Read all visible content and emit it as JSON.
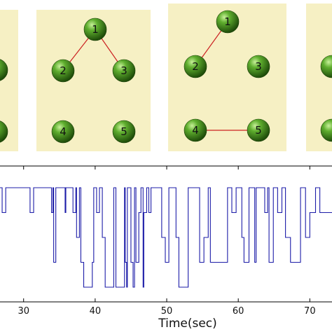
{
  "colors": {
    "panel_bg": "#f6f0c4",
    "node_fill": "#3f8a1c",
    "edge": "#cc2222",
    "trace": "#1c1ca8",
    "axis": "#000000"
  },
  "panels": [
    {
      "nodes": [
        {
          "id": "2",
          "label": ""
        },
        {
          "id": "4",
          "label": ""
        }
      ],
      "edges": []
    },
    {
      "nodes": [
        {
          "id": "1",
          "label": "1"
        },
        {
          "id": "2",
          "label": "2"
        },
        {
          "id": "3",
          "label": "3"
        },
        {
          "id": "4",
          "label": "4"
        },
        {
          "id": "5",
          "label": "5"
        }
      ],
      "edges": [
        [
          "1",
          "2"
        ],
        [
          "1",
          "3"
        ]
      ]
    },
    {
      "nodes": [
        {
          "id": "1",
          "label": "1"
        },
        {
          "id": "2",
          "label": "2"
        },
        {
          "id": "3",
          "label": "3"
        },
        {
          "id": "4",
          "label": "4"
        },
        {
          "id": "5",
          "label": "5"
        }
      ],
      "edges": [
        [
          "1",
          "2"
        ],
        [
          "4",
          "5"
        ]
      ]
    },
    {
      "nodes": [
        {
          "id": "1",
          "label": ""
        },
        {
          "id": "2",
          "label": ""
        }
      ],
      "edges": []
    }
  ],
  "timeline": {
    "xlabel": "Time(sec)",
    "xlim": [
      26.7,
      73.1
    ],
    "xticks": [
      {
        "value": 30,
        "label": "30"
      },
      {
        "value": 40,
        "label": "40"
      },
      {
        "value": 50,
        "label": "50"
      },
      {
        "value": 60,
        "label": "60"
      },
      {
        "value": 70,
        "label": "70"
      }
    ],
    "levels": [
      1,
      2,
      3,
      4,
      5
    ],
    "steps": [
      [
        26.7,
        1
      ],
      [
        27.0,
        1
      ],
      [
        27.0,
        2
      ],
      [
        27.5,
        2
      ],
      [
        27.5,
        1
      ],
      [
        30.9,
        1
      ],
      [
        30.9,
        2
      ],
      [
        31.4,
        2
      ],
      [
        31.4,
        1
      ],
      [
        33.9,
        1
      ],
      [
        33.9,
        2
      ],
      [
        34.1,
        2
      ],
      [
        34.1,
        1
      ],
      [
        34.2,
        1
      ],
      [
        34.2,
        4
      ],
      [
        34.5,
        4
      ],
      [
        34.5,
        1
      ],
      [
        35.8,
        1
      ],
      [
        35.8,
        2
      ],
      [
        35.9,
        2
      ],
      [
        35.9,
        1
      ],
      [
        36.9,
        1
      ],
      [
        36.9,
        2
      ],
      [
        37.3,
        2
      ],
      [
        37.3,
        1
      ],
      [
        37.4,
        1
      ],
      [
        37.4,
        3
      ],
      [
        37.8,
        3
      ],
      [
        37.8,
        1
      ],
      [
        38.0,
        1
      ],
      [
        38.0,
        4
      ],
      [
        38.4,
        4
      ],
      [
        38.4,
        5
      ],
      [
        39.6,
        5
      ],
      [
        39.6,
        4
      ],
      [
        39.8,
        4
      ],
      [
        39.8,
        1
      ],
      [
        40.2,
        1
      ],
      [
        40.2,
        2
      ],
      [
        40.6,
        2
      ],
      [
        40.6,
        1
      ],
      [
        41.0,
        1
      ],
      [
        41.0,
        3
      ],
      [
        41.4,
        3
      ],
      [
        41.4,
        5
      ],
      [
        42.6,
        5
      ],
      [
        42.6,
        1
      ],
      [
        42.9,
        1
      ],
      [
        42.9,
        5
      ],
      [
        44.1,
        5
      ],
      [
        44.1,
        1
      ],
      [
        44.2,
        1
      ],
      [
        44.2,
        4
      ],
      [
        44.4,
        4
      ],
      [
        44.4,
        5
      ],
      [
        44.5,
        5
      ],
      [
        44.5,
        1
      ],
      [
        45.0,
        1
      ],
      [
        45.0,
        4
      ],
      [
        45.3,
        4
      ],
      [
        45.3,
        5
      ],
      [
        45.5,
        5
      ],
      [
        45.5,
        1
      ],
      [
        45.7,
        1
      ],
      [
        45.7,
        4
      ],
      [
        46.1,
        4
      ],
      [
        46.1,
        2
      ],
      [
        46.4,
        2
      ],
      [
        46.4,
        1
      ],
      [
        46.7,
        1
      ],
      [
        46.7,
        5
      ],
      [
        46.8,
        5
      ],
      [
        46.8,
        2
      ],
      [
        47.2,
        2
      ],
      [
        47.2,
        1
      ],
      [
        47.5,
        1
      ],
      [
        47.5,
        2
      ],
      [
        47.8,
        2
      ],
      [
        47.8,
        1
      ],
      [
        49.3,
        1
      ],
      [
        49.3,
        3
      ],
      [
        49.8,
        3
      ],
      [
        49.8,
        4
      ],
      [
        50.3,
        4
      ],
      [
        50.3,
        1
      ],
      [
        51.3,
        1
      ],
      [
        51.3,
        3
      ],
      [
        51.7,
        3
      ],
      [
        51.7,
        5
      ],
      [
        53.0,
        5
      ],
      [
        53.0,
        1
      ],
      [
        54.6,
        1
      ],
      [
        54.6,
        4
      ],
      [
        55.2,
        4
      ],
      [
        55.2,
        3
      ],
      [
        55.8,
        3
      ],
      [
        55.8,
        1
      ],
      [
        56.1,
        1
      ],
      [
        56.1,
        4
      ],
      [
        58.5,
        4
      ],
      [
        58.5,
        1
      ],
      [
        59.1,
        1
      ],
      [
        59.1,
        2
      ],
      [
        59.7,
        2
      ],
      [
        59.7,
        1
      ],
      [
        60.5,
        1
      ],
      [
        60.5,
        3
      ],
      [
        60.8,
        3
      ],
      [
        60.8,
        4
      ],
      [
        61.5,
        4
      ],
      [
        61.5,
        1
      ],
      [
        62.3,
        1
      ],
      [
        62.3,
        4
      ],
      [
        62.5,
        4
      ],
      [
        62.5,
        1
      ],
      [
        63.7,
        1
      ],
      [
        63.7,
        2
      ],
      [
        64.1,
        2
      ],
      [
        64.1,
        1
      ],
      [
        64.3,
        1
      ],
      [
        64.3,
        4
      ],
      [
        64.9,
        4
      ],
      [
        64.9,
        1
      ],
      [
        65.5,
        1
      ],
      [
        65.5,
        2
      ],
      [
        66.1,
        2
      ],
      [
        66.1,
        1
      ],
      [
        66.6,
        1
      ],
      [
        66.6,
        3
      ],
      [
        67.3,
        3
      ],
      [
        67.3,
        4
      ],
      [
        68.7,
        4
      ],
      [
        68.7,
        1
      ],
      [
        69.4,
        1
      ],
      [
        69.4,
        3
      ],
      [
        70.0,
        3
      ],
      [
        70.0,
        2
      ],
      [
        70.8,
        2
      ],
      [
        70.8,
        1
      ],
      [
        71.4,
        1
      ],
      [
        71.4,
        2
      ],
      [
        73.1,
        2
      ]
    ]
  }
}
